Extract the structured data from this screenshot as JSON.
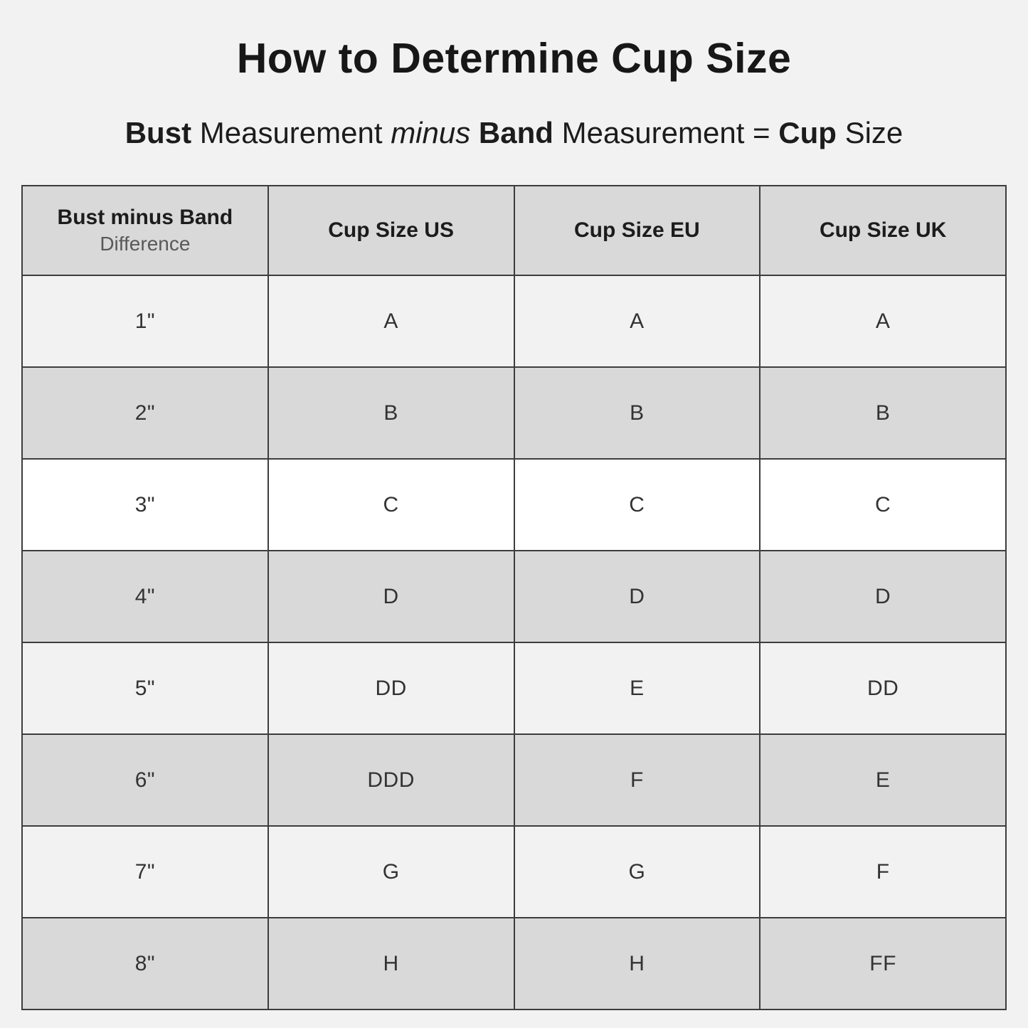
{
  "header": {
    "title": "How to Determine Cup Size",
    "formula": {
      "bust": "Bust",
      "measurement_1": "Measurement",
      "minus": "minus",
      "band": "Band",
      "measurement_2": "Measurement",
      "equals": "=",
      "cup": "Cup",
      "size": "Size"
    }
  },
  "table": {
    "columns": {
      "difference_line1": "Bust minus Band",
      "difference_line2": "Difference",
      "us": "Cup Size US",
      "eu": "Cup Size EU",
      "uk": "Cup Size UK"
    },
    "rows": [
      {
        "difference": "1\"",
        "us": "A",
        "eu": "A",
        "uk": "A"
      },
      {
        "difference": "2\"",
        "us": "B",
        "eu": "B",
        "uk": "B"
      },
      {
        "difference": "3\"",
        "us": "C",
        "eu": "C",
        "uk": "C"
      },
      {
        "difference": "4\"",
        "us": "D",
        "eu": "D",
        "uk": "D"
      },
      {
        "difference": "5\"",
        "us": "DD",
        "eu": "E",
        "uk": "DD"
      },
      {
        "difference": "6\"",
        "us": "DDD",
        "eu": "F",
        "uk": "E"
      },
      {
        "difference": "7\"",
        "us": "G",
        "eu": "G",
        "uk": "F"
      },
      {
        "difference": "8\"",
        "us": "H",
        "eu": "H",
        "uk": "FF"
      }
    ]
  },
  "colors": {
    "page_background": "#f2f2f2",
    "header_row_background": "#d9d9d9",
    "row_gray": "#d9d9d9",
    "row_light": "#f2f2f2",
    "row_highlight_white": "#ffffff",
    "border": "#3d3d3d",
    "text_primary": "#1c1c1c",
    "text_secondary": "#595959"
  }
}
